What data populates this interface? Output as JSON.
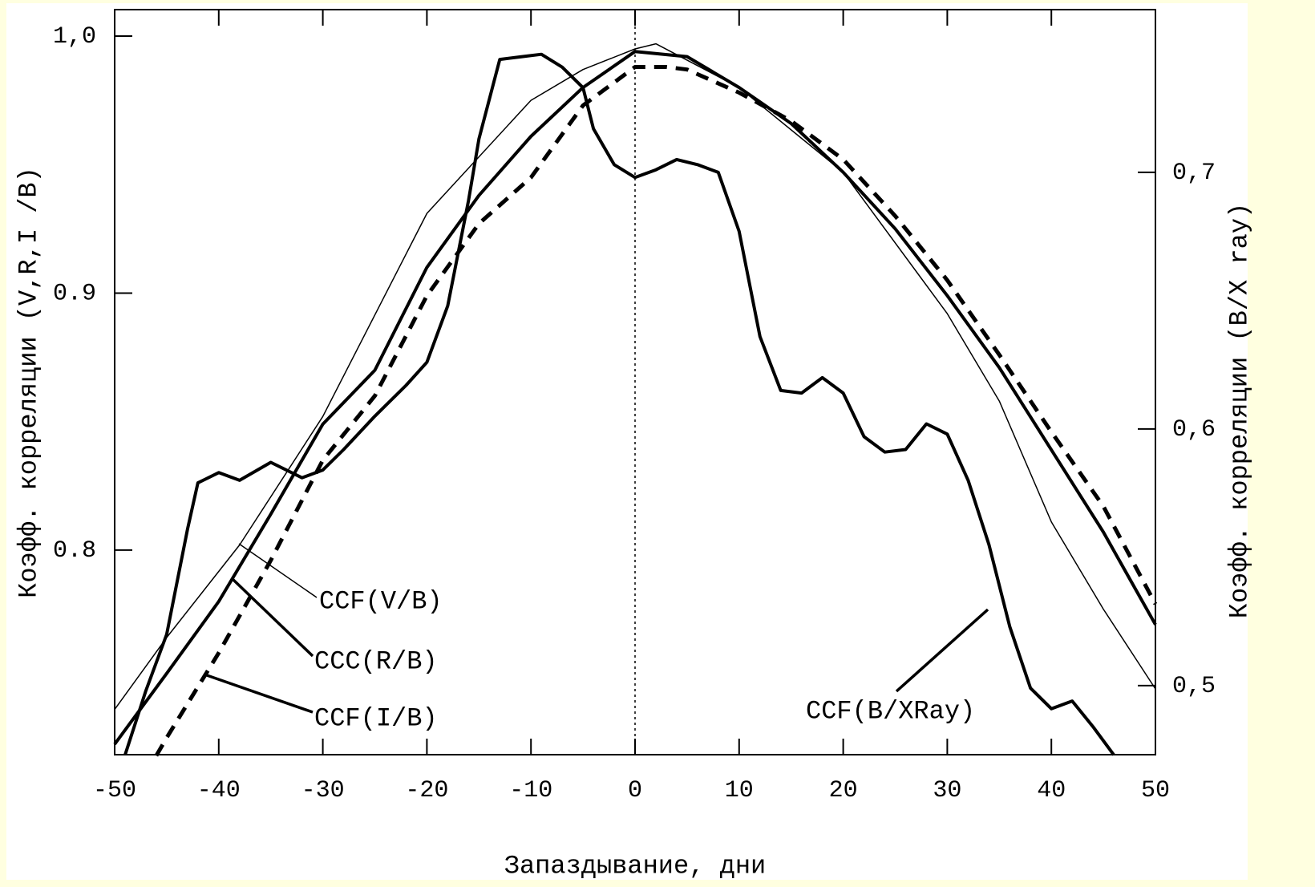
{
  "chart_data": {
    "type": "line",
    "x_label": "Запаздывание, дни",
    "y_label": "Коэфф. корреляции (V,R,I /B)",
    "y2_label": "Коэфф. корреляции (B/X ray)",
    "xlim": [
      -50,
      50
    ],
    "xticks": [
      -50,
      -40,
      -30,
      -20,
      -10,
      0,
      10,
      20,
      30,
      40,
      50
    ],
    "ylim": [
      0.7204,
      1.0103
    ],
    "yticks": [
      {
        "value": 0.8,
        "label": "0.8"
      },
      {
        "value": 0.9,
        "label": "0.9"
      },
      {
        "value": 1.0,
        "label": "1,0"
      }
    ],
    "y2lim": [
      0.4731,
      0.7634
    ],
    "y2ticks": [
      {
        "value": 0.5,
        "label": "0,5"
      },
      {
        "value": 0.6,
        "label": "0,6"
      },
      {
        "value": 0.7,
        "label": "0,7"
      }
    ],
    "series": [
      {
        "name": "CCF(V/B)",
        "color": "#000000",
        "linewidth": 1.5,
        "dashed": false,
        "x": [
          -50,
          -45,
          -38,
          -30,
          -20,
          -10,
          -5,
          0,
          2,
          10,
          20,
          30,
          35,
          40,
          45,
          50
        ],
        "values": [
          0.738,
          0.766,
          0.802,
          0.852,
          0.931,
          0.975,
          0.987,
          0.995,
          0.997,
          0.98,
          0.947,
          0.892,
          0.858,
          0.811,
          0.777,
          0.746
        ]
      },
      {
        "name": "CCC(R/B)",
        "color": "#000000",
        "linewidth": 4,
        "dashed": false,
        "x": [
          -50,
          -45,
          -40,
          -35,
          -30,
          -25,
          -20,
          -15,
          -10,
          -5,
          0,
          5,
          10,
          15,
          20,
          25,
          30,
          35,
          40,
          45,
          50
        ],
        "values": [
          0.7245,
          0.752,
          0.78,
          0.814,
          0.849,
          0.87,
          0.91,
          0.938,
          0.961,
          0.98,
          0.994,
          0.992,
          0.98,
          0.966,
          0.947,
          0.925,
          0.899,
          0.871,
          0.839,
          0.807,
          0.771
        ]
      },
      {
        "name": "CCF(I/B)",
        "color": "#000000",
        "linewidth": 5,
        "dashed": true,
        "x": [
          -46,
          -45,
          -40,
          -35,
          -30,
          -25,
          -20,
          -15,
          -10,
          -5,
          0,
          3,
          5,
          10,
          15,
          20,
          25,
          30,
          35,
          40,
          45,
          50
        ],
        "values": [
          0.72,
          0.727,
          0.76,
          0.796,
          0.835,
          0.86,
          0.899,
          0.927,
          0.945,
          0.973,
          0.988,
          0.988,
          0.987,
          0.978,
          0.967,
          0.952,
          0.93,
          0.905,
          0.876,
          0.846,
          0.817,
          0.779
        ]
      },
      {
        "name": "CCF(B/XRay)",
        "color": "#000000",
        "linewidth": 4,
        "dashed": false,
        "axis": "y2",
        "x": [
          -49,
          -47,
          -45,
          -43,
          -42,
          -40,
          -38,
          -35,
          -32,
          -30,
          -28,
          -25,
          -22,
          -20,
          -18,
          -16,
          -15,
          -13,
          -11,
          -9,
          -7,
          -5,
          -4,
          -2,
          0,
          2,
          4,
          6,
          8,
          10,
          12,
          14,
          16,
          18,
          20,
          22,
          24,
          26,
          28,
          30,
          32,
          34,
          36,
          38,
          40,
          42,
          44,
          46
        ],
        "values": [
          0.473,
          0.498,
          0.52,
          0.561,
          0.579,
          0.583,
          0.58,
          0.587,
          0.581,
          0.584,
          0.592,
          0.605,
          0.617,
          0.626,
          0.648,
          0.689,
          0.713,
          0.744,
          0.745,
          0.746,
          0.741,
          0.733,
          0.717,
          0.703,
          0.698,
          0.701,
          0.705,
          0.703,
          0.7,
          0.677,
          0.636,
          0.615,
          0.614,
          0.62,
          0.614,
          0.597,
          0.591,
          0.592,
          0.602,
          0.598,
          0.58,
          0.555,
          0.523,
          0.499,
          0.491,
          0.494,
          0.484,
          0.473
        ]
      }
    ]
  }
}
